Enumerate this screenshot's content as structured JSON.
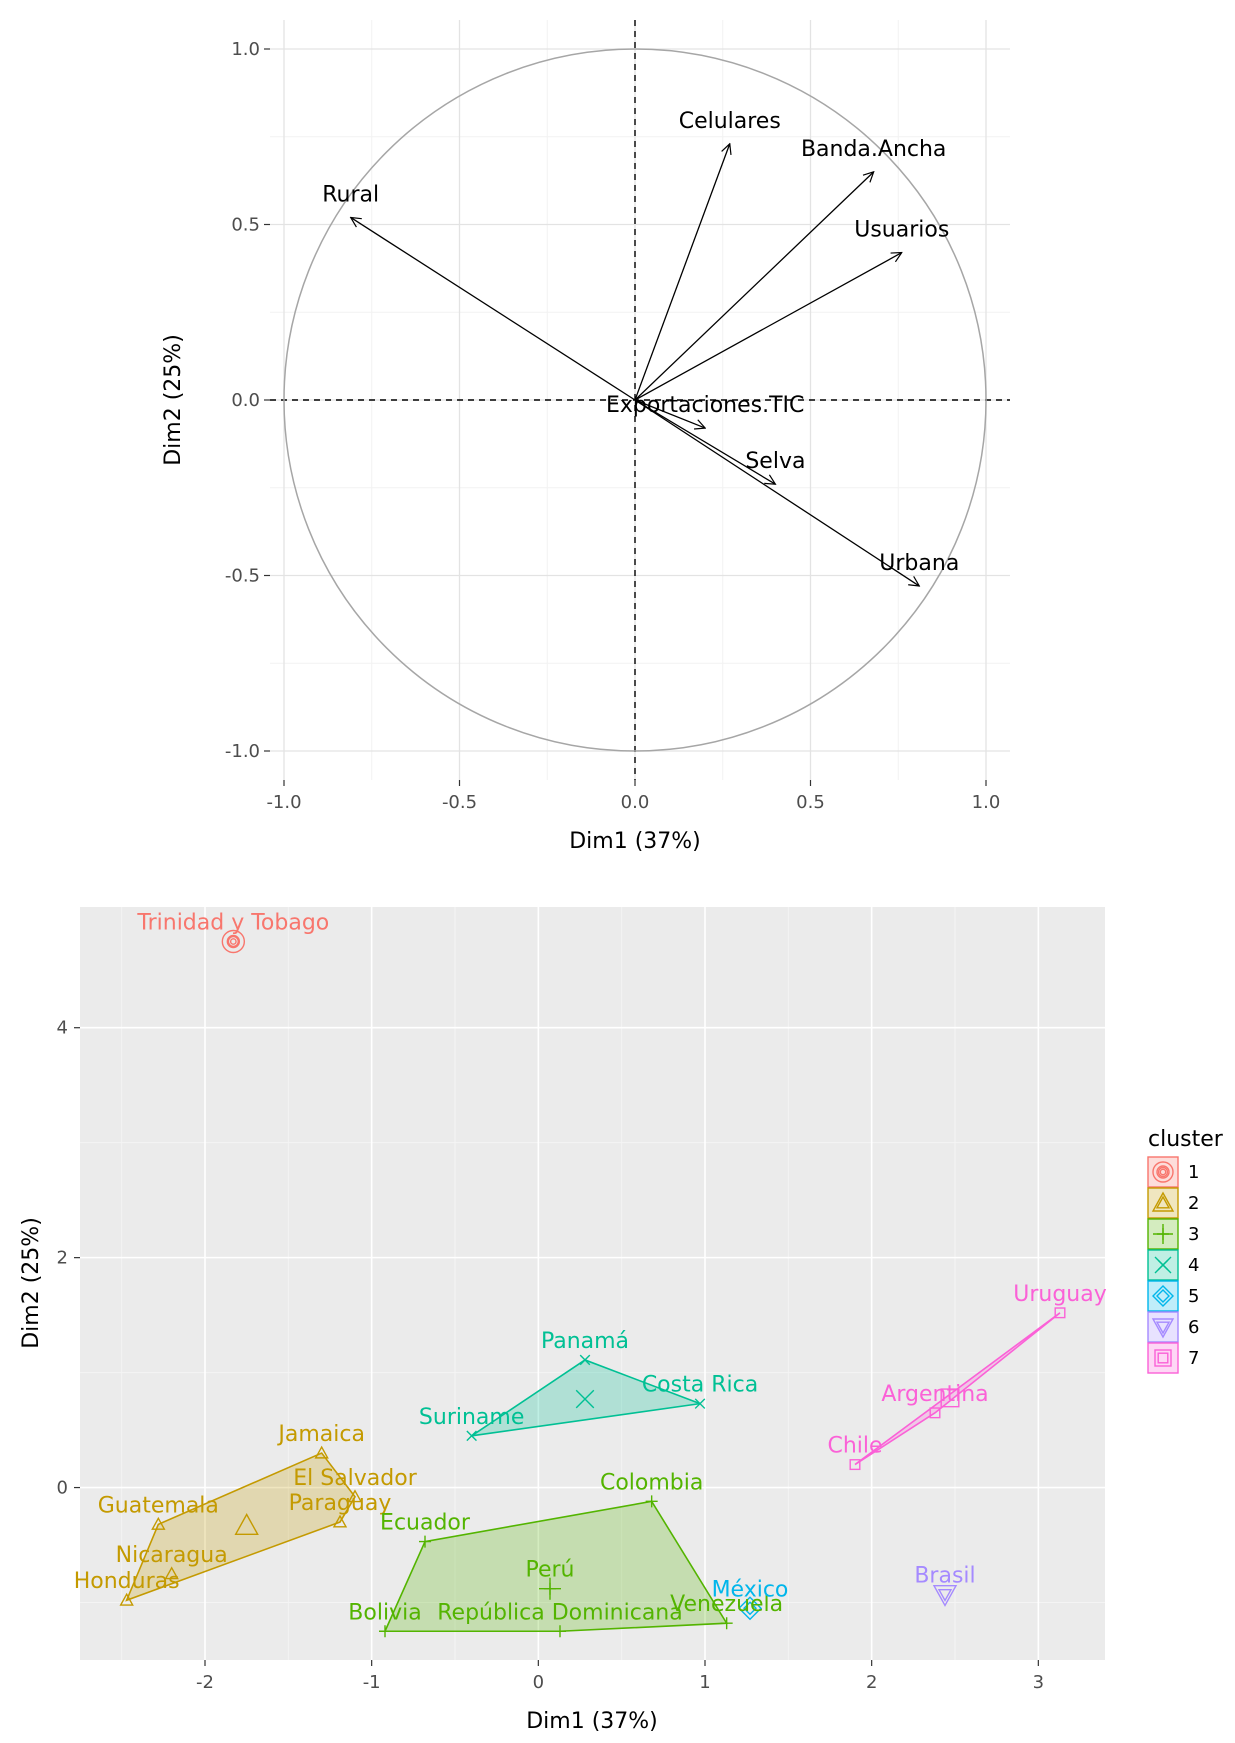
{
  "chart_data": [
    {
      "type": "scatter",
      "subtype": "variables-correlation-circle",
      "xlabel": "Dim1 (37%)",
      "ylabel": "Dim2 (25%)",
      "xlim": [
        -1.0,
        1.0
      ],
      "ylim": [
        -1.0,
        1.0
      ],
      "xticks": [
        "-1.0",
        "-0.5",
        "0.0",
        "0.5",
        "1.0"
      ],
      "yticks": [
        "-1.0",
        "-0.5",
        "0.0",
        "0.5",
        "1.0"
      ],
      "xtick_values": [
        -1.0,
        -0.5,
        0.0,
        0.5,
        1.0
      ],
      "ytick_values": [
        -1.0,
        -0.5,
        0.0,
        0.5,
        1.0
      ],
      "variables": [
        {
          "name": "Celulares",
          "x": 0.27,
          "y": 0.73
        },
        {
          "name": "Banda.Ancha",
          "x": 0.68,
          "y": 0.65
        },
        {
          "name": "Rural",
          "x": -0.81,
          "y": 0.52
        },
        {
          "name": "Usuarios",
          "x": 0.76,
          "y": 0.42
        },
        {
          "name": "Exportaciones.TIC",
          "x": 0.2,
          "y": -0.08
        },
        {
          "name": "Selva",
          "x": 0.4,
          "y": -0.24
        },
        {
          "name": "Urbana",
          "x": 0.81,
          "y": -0.53
        }
      ]
    },
    {
      "type": "scatter",
      "subtype": "cluster-plot",
      "xlabel": "Dim1 (37%)",
      "ylabel": "Dim2 (25%)",
      "xlim": [
        -2.75,
        3.4
      ],
      "ylim": [
        -1.5,
        5.05
      ],
      "xticks": [
        "-2",
        "-1",
        "0",
        "1",
        "2",
        "3"
      ],
      "yticks": [
        "0",
        "2",
        "4"
      ],
      "xtick_values": [
        -2,
        -1,
        0,
        1,
        2,
        3
      ],
      "ytick_values": [
        0,
        2,
        4
      ],
      "legend_title": "cluster",
      "clusters": [
        {
          "id": "1",
          "color": "#F8766D",
          "shape": "circle",
          "centroid": [
            -1.83,
            4.75
          ],
          "hull": [],
          "points": [
            {
              "name": "Trinidad y Tobago",
              "x": -1.83,
              "y": 4.75
            }
          ]
        },
        {
          "id": "2",
          "color": "#C49A00",
          "shape": "triangle",
          "centroid": [
            -1.75,
            -0.33
          ],
          "hull": [
            [
              -2.47,
              -0.98
            ],
            [
              -2.28,
              -0.32
            ],
            [
              -1.3,
              0.3
            ],
            [
              -1.1,
              -0.08
            ],
            [
              -1.19,
              -0.3
            ]
          ],
          "points": [
            {
              "name": "Jamaica",
              "x": -1.3,
              "y": 0.3
            },
            {
              "name": "El Salvador",
              "x": -1.1,
              "y": -0.08
            },
            {
              "name": "Guatemala",
              "x": -2.28,
              "y": -0.32
            },
            {
              "name": "Paraguay",
              "x": -1.19,
              "y": -0.3
            },
            {
              "name": "Nicaragua",
              "x": -2.2,
              "y": -0.75
            },
            {
              "name": "Honduras",
              "x": -2.47,
              "y": -0.98
            }
          ]
        },
        {
          "id": "3",
          "color": "#53B400",
          "shape": "plus",
          "centroid": [
            0.07,
            -0.88
          ],
          "hull": [
            [
              -0.92,
              -1.25
            ],
            [
              -0.68,
              -0.47
            ],
            [
              0.68,
              -0.12
            ],
            [
              1.13,
              -1.18
            ],
            [
              0.13,
              -1.25
            ]
          ],
          "points": [
            {
              "name": "Colombia",
              "x": 0.68,
              "y": -0.12
            },
            {
              "name": "Ecuador",
              "x": -0.68,
              "y": -0.47
            },
            {
              "name": "Perú",
              "x": 0.07,
              "y": -0.88
            },
            {
              "name": "Bolivia",
              "x": -0.92,
              "y": -1.25
            },
            {
              "name": "República Dominicana",
              "x": 0.13,
              "y": -1.25
            },
            {
              "name": "Venezuela",
              "x": 1.13,
              "y": -1.18
            }
          ]
        },
        {
          "id": "4",
          "color": "#00C094",
          "shape": "cross",
          "centroid": [
            0.28,
            0.77
          ],
          "hull": [
            [
              -0.4,
              0.45
            ],
            [
              0.28,
              1.11
            ],
            [
              0.97,
              0.73
            ]
          ],
          "points": [
            {
              "name": "Panamá",
              "x": 0.28,
              "y": 1.11
            },
            {
              "name": "Costa Rica",
              "x": 0.97,
              "y": 0.73
            },
            {
              "name": "Suriname",
              "x": -0.4,
              "y": 0.45
            }
          ]
        },
        {
          "id": "5",
          "color": "#00B6EB",
          "shape": "diamond",
          "centroid": [
            1.27,
            -1.05
          ],
          "hull": [],
          "points": [
            {
              "name": "México",
              "x": 1.27,
              "y": -1.05
            }
          ]
        },
        {
          "id": "6",
          "color": "#A58AFF",
          "shape": "down-triangle",
          "centroid": [
            2.44,
            -0.93
          ],
          "hull": [],
          "points": [
            {
              "name": "Brasil",
              "x": 2.44,
              "y": -0.93
            }
          ]
        },
        {
          "id": "7",
          "color": "#FB61D7",
          "shape": "square",
          "centroid": [
            2.47,
            0.78
          ],
          "hull": [
            [
              1.9,
              0.2
            ],
            [
              2.38,
              0.65
            ],
            [
              3.13,
              1.52
            ]
          ],
          "points": [
            {
              "name": "Uruguay",
              "x": 3.13,
              "y": 1.52
            },
            {
              "name": "Argentina",
              "x": 2.38,
              "y": 0.65
            },
            {
              "name": "Chile",
              "x": 1.9,
              "y": 0.2
            }
          ]
        }
      ]
    }
  ]
}
